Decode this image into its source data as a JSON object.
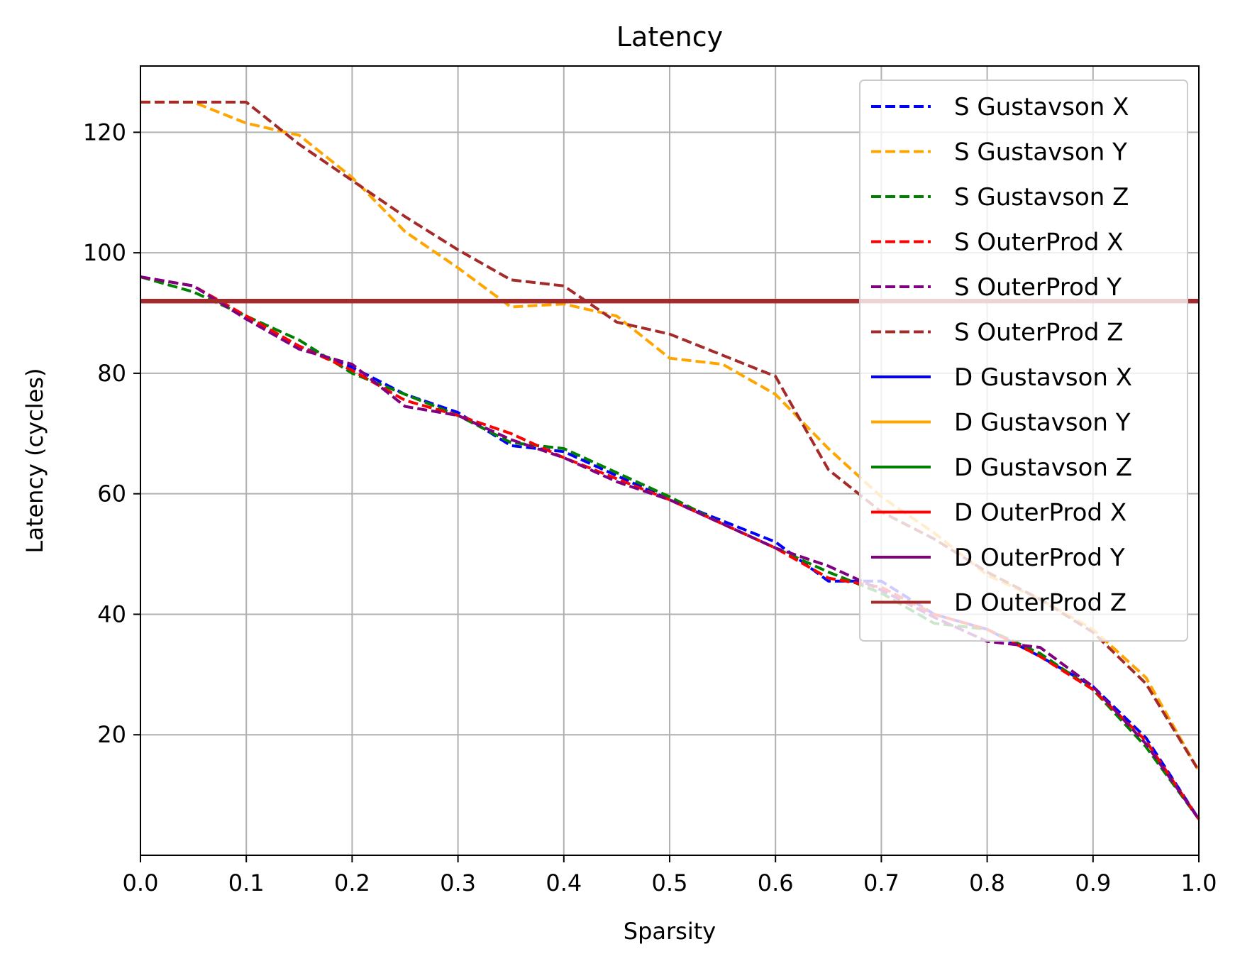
{
  "chart_data": {
    "type": "line",
    "title": "Latency",
    "xlabel": "Sparsity",
    "ylabel": "Latency (cycles)",
    "xlim": [
      0.0,
      1.0
    ],
    "ylim": [
      0,
      131
    ],
    "xticks": [
      0.0,
      0.1,
      0.2,
      0.3,
      0.4,
      0.5,
      0.6,
      0.7,
      0.8,
      0.9,
      1.0
    ],
    "xtick_labels": [
      "0.0",
      "0.1",
      "0.2",
      "0.3",
      "0.4",
      "0.5",
      "0.6",
      "0.7",
      "0.8",
      "0.9",
      "1.0"
    ],
    "yticks": [
      20,
      40,
      60,
      80,
      100,
      120
    ],
    "ytick_labels": [
      "20",
      "40",
      "60",
      "80",
      "100",
      "120"
    ],
    "grid": true,
    "legend_position": "top-right",
    "x": [
      0.0,
      0.05,
      0.1,
      0.15,
      0.2,
      0.25,
      0.3,
      0.35,
      0.4,
      0.45,
      0.5,
      0.55,
      0.6,
      0.65,
      0.7,
      0.75,
      0.8,
      0.85,
      0.9,
      0.95,
      1.0
    ],
    "series": [
      {
        "name": "S Gustavson X",
        "color": "#0000ff",
        "style": "dashed",
        "values": [
          96,
          94.5,
          89,
          84.5,
          81,
          76.5,
          73.5,
          68,
          67,
          63,
          59,
          55.5,
          52,
          45.5,
          45.5,
          40,
          37.5,
          33,
          28,
          19.5,
          6
        ]
      },
      {
        "name": "S Gustavson Y",
        "color": "#ffa500",
        "style": "dashed",
        "values": [
          125,
          125,
          121.5,
          119.5,
          112.5,
          103.5,
          97.5,
          91,
          91.5,
          89.5,
          82.5,
          81.5,
          76.5,
          67.5,
          59.5,
          53.5,
          46.5,
          42.5,
          37.5,
          29.5,
          14
        ]
      },
      {
        "name": "S Gustavson Z",
        "color": "#008000",
        "style": "dashed",
        "values": [
          96,
          93.5,
          89.5,
          85.5,
          80,
          76.5,
          73,
          68.5,
          67.5,
          63.5,
          59.5,
          55,
          51,
          47,
          43.5,
          38.5,
          37.5,
          33.5,
          27.5,
          18,
          6
        ]
      },
      {
        "name": "S OuterProd X",
        "color": "#ff0000",
        "style": "dashed",
        "values": [
          96,
          94.5,
          89.5,
          84.5,
          80.5,
          75.5,
          73,
          70,
          66,
          62.5,
          59,
          55,
          51,
          46,
          44.5,
          40,
          37.5,
          33,
          27.5,
          19,
          6
        ]
      },
      {
        "name": "S OuterProd Y",
        "color": "#800080",
        "style": "dashed",
        "values": [
          96,
          94.5,
          89,
          84,
          81.5,
          74.5,
          73,
          69,
          66,
          62,
          59,
          55,
          51,
          48,
          44,
          39.5,
          35.5,
          34.5,
          28,
          18.5,
          6
        ]
      },
      {
        "name": "S OuterProd Z",
        "color": "#a52a2a",
        "style": "dashed",
        "values": [
          125,
          125,
          125,
          118,
          112,
          106,
          100.5,
          95.5,
          94.5,
          88.5,
          86.5,
          83,
          79.5,
          64,
          57,
          52.5,
          47,
          42.5,
          37,
          28.5,
          14
        ]
      },
      {
        "name": "D Gustavson X",
        "color": "#0000ff",
        "style": "solid",
        "values": [
          92,
          92,
          92,
          92,
          92,
          92,
          92,
          92,
          92,
          92,
          92,
          92,
          92,
          92,
          92,
          92,
          92,
          92,
          92,
          92,
          92
        ]
      },
      {
        "name": "D Gustavson Y",
        "color": "#ffa500",
        "style": "solid",
        "values": [
          92,
          92,
          92,
          92,
          92,
          92,
          92,
          92,
          92,
          92,
          92,
          92,
          92,
          92,
          92,
          92,
          92,
          92,
          92,
          92,
          92
        ]
      },
      {
        "name": "D Gustavson Z",
        "color": "#008000",
        "style": "solid",
        "values": [
          92,
          92,
          92,
          92,
          92,
          92,
          92,
          92,
          92,
          92,
          92,
          92,
          92,
          92,
          92,
          92,
          92,
          92,
          92,
          92,
          92
        ]
      },
      {
        "name": "D OuterProd X",
        "color": "#ff0000",
        "style": "solid",
        "values": [
          92,
          92,
          92,
          92,
          92,
          92,
          92,
          92,
          92,
          92,
          92,
          92,
          92,
          92,
          92,
          92,
          92,
          92,
          92,
          92,
          92
        ]
      },
      {
        "name": "D OuterProd Y",
        "color": "#800080",
        "style": "solid",
        "values": [
          92,
          92,
          92,
          92,
          92,
          92,
          92,
          92,
          92,
          92,
          92,
          92,
          92,
          92,
          92,
          92,
          92,
          92,
          92,
          92,
          92
        ]
      },
      {
        "name": "D OuterProd Z",
        "color": "#a52a2a",
        "style": "solid",
        "values": [
          92,
          92,
          92,
          92,
          92,
          92,
          92,
          92,
          92,
          92,
          92,
          92,
          92,
          92,
          92,
          92,
          92,
          92,
          92,
          92,
          92
        ]
      }
    ]
  }
}
